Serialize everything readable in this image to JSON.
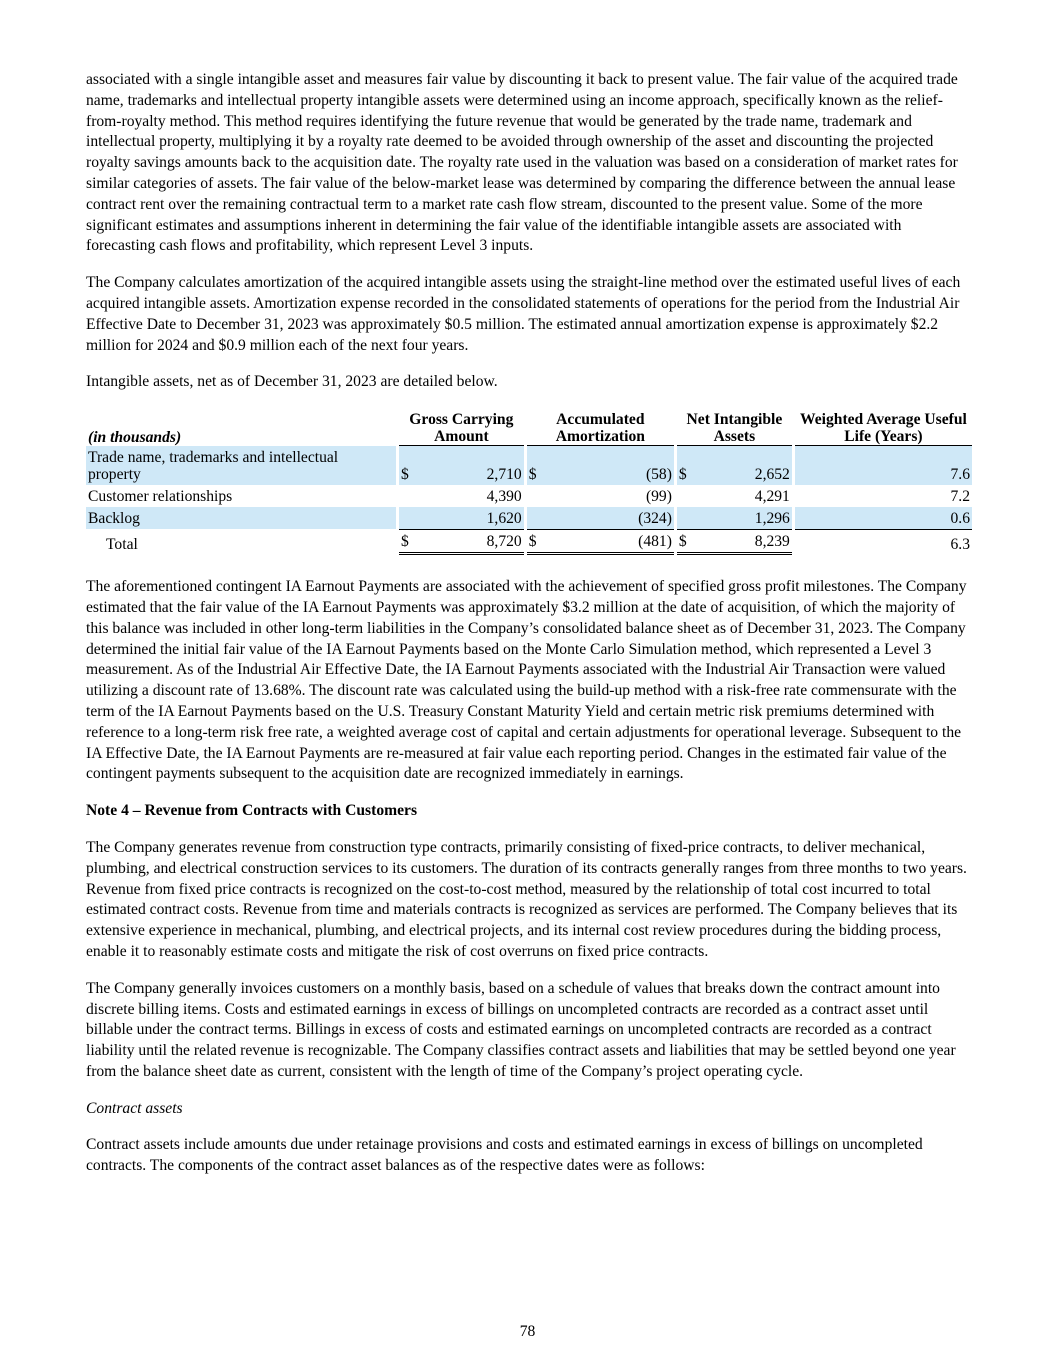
{
  "body": {
    "para1": "associated with a single intangible asset and measures fair value by discounting it back to present value. The fair value of the acquired trade name, trademarks and intellectual property intangible assets were determined using an income approach, specifically known as the relief-from-royalty method. This method requires identifying the future revenue that would be generated by the trade name, trademark and intellectual property, multiplying it by a royalty rate deemed to be avoided through ownership of the asset and discounting the projected royalty savings amounts back to the acquisition date. The royalty rate used in the valuation was based on a consideration of market rates for similar categories of assets. The fair value of the below-market lease was determined by comparing the difference between the annual lease contract rent over the remaining contractual term to a market rate cash flow stream, discounted to the present value. Some of the more significant estimates and assumptions inherent in determining the fair value of the identifiable intangible assets are associated with forecasting cash flows and profitability, which represent Level 3 inputs.",
    "para2": "The Company calculates amortization of the acquired intangible assets using the straight-line method over the estimated useful lives of each acquired intangible assets. Amortization expense recorded in the consolidated statements of operations for the period from the Industrial Air Effective Date to December 31, 2023 was approximately $0.5 million. The estimated annual amortization expense is approximately $2.2 million for 2024 and $0.9 million each of the next four years.",
    "para3": "Intangible assets, net as of December 31, 2023 are detailed below.",
    "para4": "The aforementioned contingent IA Earnout Payments are associated with the achievement of specified gross profit milestones. The Company estimated that the fair value of the IA Earnout Payments was approximately $3.2 million at the date of acquisition, of which the majority of this balance was included in other long-term liabilities in the Company’s consolidated balance sheet as of December 31, 2023. The Company determined the initial fair value of the IA Earnout Payments based on the Monte Carlo Simulation method, which represented a Level 3 measurement. As of the Industrial Air Effective Date, the IA Earnout Payments associated with the Industrial Air Transaction were valued utilizing a discount rate of 13.68%. The discount rate was calculated using the build-up method with a risk-free rate commensurate with the term of the IA Earnout Payments based on the U.S. Treasury Constant Maturity Yield and certain metric risk premiums determined with reference to a long-term risk free rate, a weighted average cost of capital and certain adjustments for operational leverage. Subsequent to the IA Effective Date, the IA Earnout Payments are re-measured at fair value each reporting period. Changes in the estimated fair value of the contingent payments subsequent to the acquisition date are recognized immediately in earnings.",
    "heading1": "Note 4 – Revenue from Contracts with Customers",
    "para5": "The Company generates revenue from construction type contracts, primarily consisting of fixed-price contracts, to deliver mechanical, plumbing, and electrical construction services to its customers. The duration of its contracts generally ranges from three months to two years. Revenue from fixed price contracts is recognized on the cost-to-cost method, measured by the relationship of total cost incurred to total estimated contract costs. Revenue from time and materials contracts is recognized as services are performed. The Company believes that its extensive experience in mechanical, plumbing, and electrical projects, and its internal cost review procedures during the bidding process, enable it to reasonably estimate costs and mitigate the risk of cost overruns on fixed price contracts.",
    "para6": "The Company generally invoices customers on a monthly basis, based on a schedule of values that breaks down the contract amount into discrete billing items. Costs and estimated earnings in excess of billings on uncompleted contracts are recorded as a contract asset until billable under the contract terms. Billings in excess of costs and estimated earnings on uncompleted contracts are recorded as a contract liability until the related revenue is recognizable. The Company classifies contract assets and liabilities that may be settled beyond one year from the balance sheet date as current, consistent with the length of time of the Company’s project operating cycle.",
    "heading2": "Contract assets",
    "para7": "Contract assets include amounts due under retainage provisions and costs and estimated earnings in excess of billings on uncompleted contracts. The components of the contract asset balances as of the respective dates were as follows:",
    "page_number": "78"
  },
  "table": {
    "headers": [
      "(in thousands)",
      "Gross Carrying Amount",
      "Accumulated Amortization",
      "Net Intangible Assets",
      "Weighted Average Useful Life (Years)"
    ],
    "rows": [
      {
        "label": "Trade name, trademarks and intellectual property",
        "currency": "$",
        "amounts": [
          "2,710",
          "(58)",
          "2,652"
        ],
        "life": "7.6"
      },
      {
        "label": "Customer relationships",
        "amounts": [
          "4,390",
          "(99)",
          "4,291"
        ],
        "life": "7.2"
      },
      {
        "label": "Backlog",
        "amounts": [
          "1,620",
          "(324)",
          "1,296"
        ],
        "life": "0.6"
      },
      {
        "label": "Total",
        "currency": "$",
        "amounts": [
          "8,720",
          "(481)",
          "8,239"
        ],
        "life": "6.3"
      }
    ]
  }
}
